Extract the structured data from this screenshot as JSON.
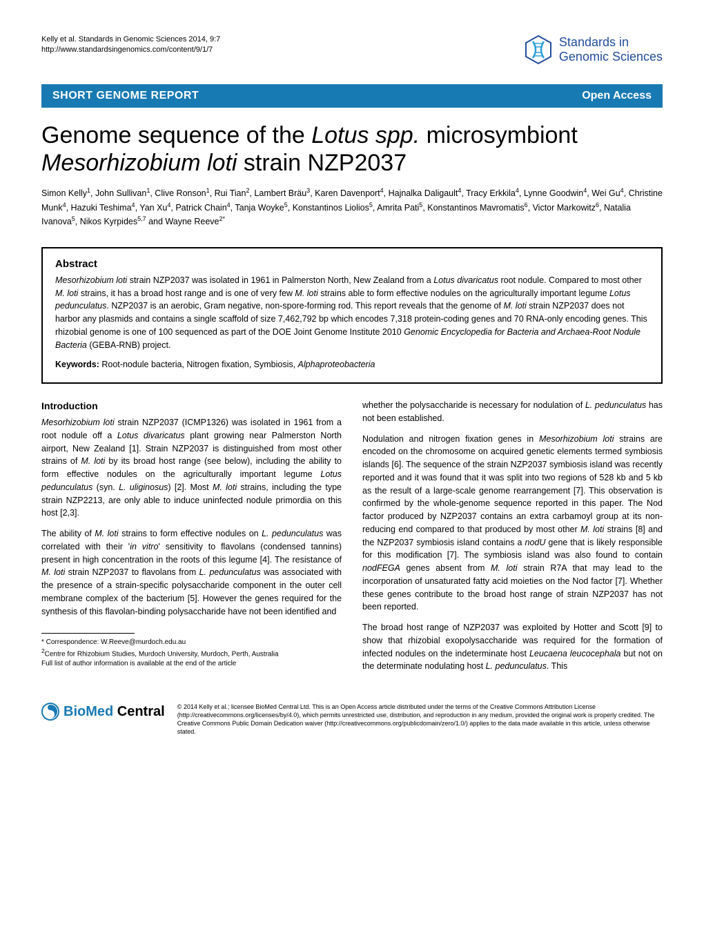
{
  "header": {
    "citation_line1": "Kelly et al. Standards in Genomic Sciences 2014, 9:7",
    "citation_line2": "http://www.standardsingenomics.com/content/9/1/7",
    "logo_text_line1": "Standards in",
    "logo_text_line2": "Genomic Sciences",
    "logo_colors": {
      "outline": "#214d9c",
      "inner": "#2a9ed8"
    }
  },
  "banner": {
    "left": "SHORT GENOME REPORT",
    "right": "Open Access",
    "bg_color": "#187ab3"
  },
  "title": {
    "part1": "Genome sequence of the ",
    "italic1": "Lotus spp.",
    "part2": " microsymbiont ",
    "italic2": "Mesorhizobium loti",
    "part3": " strain NZP2037"
  },
  "authors_html": "Simon Kelly<sup>1</sup>, John Sullivan<sup>1</sup>, Clive Ronson<sup>1</sup>, Rui Tian<sup>2</sup>, Lambert Bräu<sup>3</sup>, Karen Davenport<sup>4</sup>, Hajnalka Daligault<sup>4</sup>, Tracy Erkkila<sup>4</sup>, Lynne Goodwin<sup>4</sup>, Wei Gu<sup>4</sup>, Christine Munk<sup>4</sup>, Hazuki Teshima<sup>4</sup>, Yan Xu<sup>4</sup>, Patrick Chain<sup>4</sup>, Tanja Woyke<sup>5</sup>, Konstantinos Liolios<sup>5</sup>, Amrita Pati<sup>5</sup>, Konstantinos Mavromatis<sup>6</sup>, Victor Markowitz<sup>6</sup>, Natalia Ivanova<sup>5</sup>, Nikos Kyrpides<sup>5,7</sup> and Wayne Reeve<sup>2*</sup>",
  "abstract": {
    "heading": "Abstract",
    "text_segments": [
      {
        "italic": true,
        "text": "Mesorhizobium loti"
      },
      {
        "italic": false,
        "text": " strain NZP2037 was isolated in 1961 in Palmerston North, New Zealand from a "
      },
      {
        "italic": true,
        "text": "Lotus divaricatus"
      },
      {
        "italic": false,
        "text": " root nodule. Compared to most other "
      },
      {
        "italic": true,
        "text": "M. loti"
      },
      {
        "italic": false,
        "text": " strains, it has a broad host range and is one of very few "
      },
      {
        "italic": true,
        "text": "M. loti"
      },
      {
        "italic": false,
        "text": " strains able to form effective nodules on the agriculturally important legume "
      },
      {
        "italic": true,
        "text": "Lotus pedunculatus"
      },
      {
        "italic": false,
        "text": ". NZP2037 is an aerobic, Gram negative, non-spore-forming rod. This report reveals that the genome of "
      },
      {
        "italic": true,
        "text": "M. loti"
      },
      {
        "italic": false,
        "text": " strain NZP2037 does not harbor any plasmids and contains a single scaffold of size 7,462,792 bp which encodes 7,318 protein-coding genes and 70 RNA-only encoding genes. This rhizobial genome is one of 100 sequenced as part of the DOE Joint Genome Institute 2010 "
      },
      {
        "italic": true,
        "text": "Genomic Encyclopedia for Bacteria and Archaea-Root Nodule Bacteria"
      },
      {
        "italic": false,
        "text": " (GEBA-RNB) project."
      }
    ],
    "keywords_label": "Keywords:",
    "keywords_plain": " Root-nodule bacteria, Nitrogen fixation, Symbiosis, ",
    "keywords_italic": "Alphaproteobacteria"
  },
  "body": {
    "intro_heading": "Introduction",
    "col1_p1": "<span class=\"italic\">Mesorhizobium loti</span> strain NZP2037 (ICMP1326) was isolated in 1961 from a root nodule off a <span class=\"italic\">Lotus divaricatus</span> plant growing near Palmerston North airport, New Zealand [1]. Strain NZP2037 is distinguished from most other strains of <span class=\"italic\">M. loti</span> by its broad host range (see below), including the ability to form effective nodules on the agriculturally important legume <span class=\"italic\">Lotus pedunculatus</span> (syn. <span class=\"italic\">L. uliginosus</span>) [2]. Most <span class=\"italic\">M. loti</span> strains, including the type strain NZP2213, are only able to induce uninfected nodule primordia on this host [2,3].",
    "col1_p2": "The ability of <span class=\"italic\">M. loti</span> strains to form effective nodules on <span class=\"italic\">L. pedunculatus</span> was correlated with their '<span class=\"italic\">in vitro</span>' sensitivity to flavolans (condensed tannins) present in high concentration in the roots of this legume [4]. The resistance of <span class=\"italic\">M. loti</span> strain NZP2037 to flavolans from <span class=\"italic\">L. pedunculatus</span> was associated with the presence of a strain-specific polysaccharide component in the outer cell membrane complex of the bacterium [5]. However the genes required for the synthesis of this flavolan-binding polysaccharide have not been identified and",
    "col2_p0": "whether the polysaccharide is necessary for nodulation of <span class=\"italic\">L. pedunculatus</span> has not been established.",
    "col2_p1": "Nodulation and nitrogen fixation genes in <span class=\"italic\">Mesorhizobium loti</span> strains are encoded on the chromosome on acquired genetic elements termed symbiosis islands [6]. The sequence of the strain NZP2037 symbiosis island was recently reported and it was found that it was split into two regions of 528 kb and 5 kb as the result of a large-scale genome rearrangement [7]. This observation is confirmed by the whole-genome sequence reported in this paper. The Nod factor produced by NZP2037 contains an extra carbamoyl group at its non-reducing end compared to that produced by most other <span class=\"italic\">M. loti</span> strains [8] and the NZP2037 symbiosis island contains a <span class=\"italic\">nodU</span> gene that is likely responsible for this modification [7]. The symbiosis island was also found to contain <span class=\"italic\">nodFEGA</span> genes absent from <span class=\"italic\">M. loti</span> strain R7A that may lead to the incorporation of unsaturated fatty acid moieties on the Nod factor [7]. Whether these genes contribute to the broad host range of strain NZP2037 has not been reported.",
    "col2_p2": "The broad host range of NZP2037 was exploited by Hotter and Scott [9] to show that rhizobial exopolysaccharide was required for the formation of infected nodules on the indeterminate host <span class=\"italic\">Leucaena leucocephala</span> but not on the determinate nodulating host <span class=\"italic\">L. pedunculatus</span>. This"
  },
  "correspondence": {
    "line1": "* Correspondence: W.Reeve@murdoch.edu.au",
    "line2": "2Centre for Rhizobium Studies, Murdoch University, Murdoch, Perth, Australia",
    "line3": "Full list of author information is available at the end of the article"
  },
  "footer": {
    "bmc_bio": "BioMed",
    "bmc_central": " Central",
    "license": "© 2014 Kelly et al.; licensee BioMed Central Ltd. This is an Open Access article distributed under the terms of the Creative Commons Attribution License (http://creativecommons.org/licenses/by/4.0), which permits unrestricted use, distribution, and reproduction in any medium, provided the original work is properly credited. The Creative Commons Public Domain Dedication waiver (http://creativecommons.org/publicdomain/zero/1.0/) applies to the data made available in this article, unless otherwise stated."
  }
}
